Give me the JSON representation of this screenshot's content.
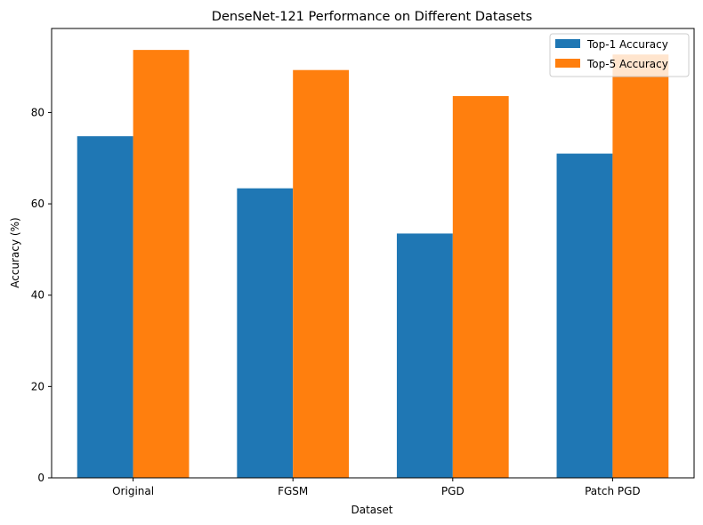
{
  "chart_data": {
    "type": "bar",
    "title": "DenseNet-121 Performance on Different Datasets",
    "xlabel": "Dataset",
    "ylabel": "Accuracy (%)",
    "categories": [
      "Original",
      "FGSM",
      "PGD",
      "Patch PGD"
    ],
    "series": [
      {
        "name": "Top-1 Accuracy",
        "color": "#1f77b4",
        "values": [
          74.8,
          63.4,
          53.5,
          71.0
        ]
      },
      {
        "name": "Top-5 Accuracy",
        "color": "#ff7f0e",
        "values": [
          93.7,
          89.3,
          83.6,
          92.7
        ]
      }
    ],
    "ylim": [
      0,
      98.4
    ],
    "yticks": [
      0,
      20,
      40,
      60,
      80
    ],
    "legend_position": "top-right",
    "grid": false
  }
}
